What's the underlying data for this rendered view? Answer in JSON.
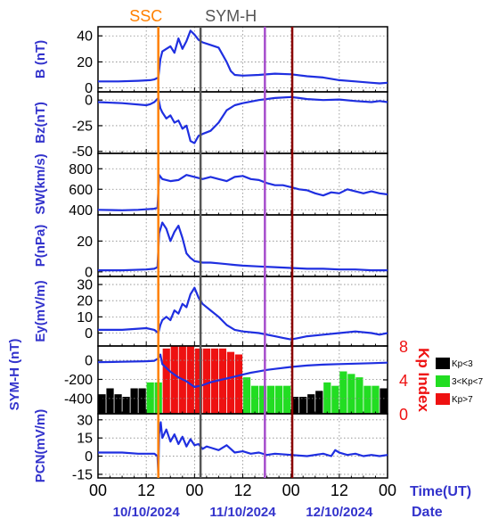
{
  "chart_data": {
    "type": "line",
    "x_axis": {
      "label": "Time(UT)",
      "date_label": "Date",
      "range_hours": [
        0,
        72
      ],
      "tick_hours": [
        0,
        12,
        24,
        36,
        48,
        60,
        72
      ],
      "tick_labels": [
        "00",
        "12",
        "00",
        "12",
        "00",
        "12",
        "00"
      ],
      "dates": [
        {
          "hour": 12,
          "label": "10/10/2024"
        },
        {
          "hour": 36,
          "label": "11/10/2024"
        },
        {
          "hour": 60,
          "label": "12/10/2024"
        }
      ]
    },
    "events": [
      {
        "label": "SSC",
        "hour": 15.0,
        "color": "#ff8000",
        "labeled": true
      },
      {
        "label": "SYM-H",
        "hour": 25.5,
        "color": "#555555",
        "labeled": true
      },
      {
        "label": "",
        "hour": 41.5,
        "color": "#a64dcc",
        "labeled": false
      },
      {
        "label": "",
        "hour": 48.3,
        "color": "#8b0000",
        "labeled": false
      }
    ],
    "panels": [
      {
        "ylabel": "B (nT)",
        "ylim": [
          -3,
          47
        ],
        "yticks": [
          0,
          20,
          40
        ],
        "series": [
          {
            "color": "#1f2fe0",
            "x": [
              0,
              5,
              10,
              13,
              14,
              15,
              15.5,
              16,
              17,
              18,
              19,
              20,
              21,
              22,
              22.5,
              23,
              24,
              25,
              26,
              28,
              30,
              32,
              33,
              34,
              36,
              40,
              44,
              48,
              52,
              56,
              60,
              64,
              68,
              70,
              72
            ],
            "y": [
              5,
              5,
              5.5,
              6,
              6.5,
              8,
              22,
              28,
              30,
              32,
              27,
              38,
              30,
              36,
              40,
              44,
              41,
              37,
              35,
              33,
              31,
              20,
              13,
              10,
              9.5,
              10,
              11,
              10.5,
              9,
              8,
              6,
              5,
              4,
              3.5,
              4
            ]
          }
        ]
      },
      {
        "ylabel": "Bz(nT)",
        "ylim": [
          -52,
          8
        ],
        "yticks": [
          0,
          -25,
          -50
        ],
        "series": [
          {
            "color": "#1f2fe0",
            "x": [
              0,
              6,
              12,
              13,
              14,
              15,
              15.5,
              16,
              17,
              18,
              19,
              20,
              21,
              22,
              23,
              24,
              25,
              26,
              28,
              30,
              32,
              34,
              36,
              40,
              44,
              48,
              50,
              52,
              56,
              60,
              64,
              68,
              70,
              72
            ],
            "y": [
              -2,
              -3,
              -5,
              -4,
              -2,
              2,
              -8,
              -12,
              -18,
              -15,
              -22,
              -20,
              -28,
              -25,
              -40,
              -42,
              -35,
              -33,
              -30,
              -22,
              -10,
              -5,
              -3,
              0,
              2,
              3,
              2,
              1,
              0,
              0.5,
              -1,
              -2,
              -1,
              -2
            ]
          }
        ]
      },
      {
        "ylabel": "SW(km/s)",
        "ylim": [
          350,
          950
        ],
        "yticks": [
          400,
          600,
          800
        ],
        "series": [
          {
            "color": "#1f2fe0",
            "x": [
              0,
              6,
              10,
              12,
              14,
              14.8,
              15.2,
              16,
              18,
              20,
              22,
              24,
              26,
              28,
              30,
              32,
              34,
              36,
              38,
              40,
              42,
              44,
              46,
              48,
              50,
              52,
              54,
              56,
              58,
              60,
              62,
              64,
              66,
              68,
              70,
              72
            ],
            "y": [
              400,
              395,
              400,
              405,
              410,
              420,
              740,
              700,
              680,
              690,
              740,
              720,
              700,
              720,
              700,
              680,
              720,
              730,
              700,
              690,
              660,
              640,
              640,
              620,
              600,
              590,
              560,
              540,
              570,
              560,
              600,
              580,
              560,
              580,
              560,
              550
            ]
          }
        ]
      },
      {
        "ylabel": "P(nPa)",
        "ylim": [
          -3,
          37
        ],
        "yticks": [
          0,
          20
        ],
        "series": [
          {
            "color": "#1f2fe0",
            "x": [
              0,
              6,
              12,
              14,
              14.8,
              15.2,
              16,
              17,
              18,
              19,
              20,
              21,
              22,
              23,
              24,
              26,
              28,
              30,
              32,
              34,
              36,
              40,
              44,
              48,
              52,
              56,
              60,
              64,
              68,
              72
            ],
            "y": [
              1,
              1,
              1.5,
              2,
              3,
              25,
              32,
              28,
              20,
              26,
              30,
              22,
              12,
              9,
              7,
              6,
              6,
              5.5,
              5,
              4.5,
              4,
              3.5,
              3,
              2.5,
              2,
              2,
              1.5,
              1.5,
              1,
              1
            ]
          }
        ]
      },
      {
        "ylabel": "Ey(mV/m)",
        "ylim": [
          -8,
          35
        ],
        "yticks": [
          0,
          10,
          20,
          30
        ],
        "series": [
          {
            "color": "#1f2fe0",
            "x": [
              0,
              6,
              12,
              14,
              15,
              15.5,
              16,
              17,
              18,
              19,
              20,
              21,
              22,
              23,
              24,
              25,
              26,
              28,
              30,
              32,
              34,
              36,
              40,
              44,
              46,
              48,
              50,
              52,
              56,
              60,
              64,
              68,
              70,
              72
            ],
            "y": [
              2,
              2,
              3,
              2,
              0,
              5,
              8,
              10,
              8,
              14,
              12,
              18,
              16,
              24,
              28,
              22,
              18,
              14,
              10,
              5,
              2,
              1,
              0,
              -2,
              -3,
              -4,
              -3,
              -2,
              -1,
              0,
              1,
              0,
              -1,
              0
            ]
          }
        ]
      },
      {
        "ylabel": "SYM-H (nT)",
        "ylim": [
          -560,
          150
        ],
        "yticks": [
          0,
          -200,
          -400
        ],
        "series": [
          {
            "color": "#1f2fe0",
            "x": [
              0,
              6,
              12,
              14,
              15,
              15.5,
              16,
              18,
              20,
              22,
              24,
              26,
              28,
              30,
              32,
              34,
              36,
              38,
              40,
              42,
              44,
              48,
              52,
              56,
              60,
              64,
              68,
              72
            ],
            "y": [
              -20,
              -15,
              -10,
              -5,
              20,
              60,
              -40,
              -120,
              -180,
              -220,
              -280,
              -260,
              -230,
              -210,
              -190,
              -170,
              -150,
              -130,
              -115,
              -100,
              -90,
              -70,
              -55,
              -45,
              -40,
              -35,
              -30,
              -25
            ]
          }
        ],
        "kp": {
          "ylabel": "Kp Index",
          "ylim": [
            0,
            8
          ],
          "yticks": [
            0,
            4,
            8
          ],
          "legend": [
            {
              "label": "Kp<3",
              "color": "#000000"
            },
            {
              "label": "3<Kp<7",
              "color": "#22dd22"
            },
            {
              "label": "Kp>7",
              "color": "#ee1111"
            }
          ],
          "values": [
            2.3,
            3.0,
            2.3,
            2.0,
            3.0,
            3.0,
            3.7,
            3.7,
            7.7,
            8.0,
            8.0,
            8.0,
            7.7,
            7.7,
            7.7,
            7.7,
            7.3,
            7.0,
            4.3,
            3.3,
            3.3,
            3.3,
            3.3,
            3.3,
            2.0,
            2.0,
            2.3,
            2.7,
            3.7,
            3.3,
            5.0,
            4.7,
            4.3,
            3.3,
            3.3,
            3.0
          ]
        }
      },
      {
        "ylabel": "PCN(mV/m)",
        "ylim": [
          -18,
          35
        ],
        "yticks": [
          30,
          15,
          0,
          -15
        ],
        "series": [
          {
            "color": "#1f2fe0",
            "x": [
              0,
              6,
              10,
              12,
              14,
              14.8,
              15.0,
              15.2,
              15.6,
              16,
              17,
              18,
              19,
              20,
              21,
              22,
              23,
              24,
              25,
              26,
              27,
              28,
              30,
              32,
              34,
              36,
              38,
              40,
              42,
              44,
              48,
              52,
              56,
              58,
              59,
              60,
              62,
              64,
              66,
              68,
              70,
              72
            ],
            "y": [
              3,
              3,
              2,
              2,
              2,
              0,
              -15,
              18,
              28,
              15,
              22,
              12,
              18,
              10,
              16,
              8,
              14,
              9,
              10,
              6,
              8,
              7,
              5,
              9,
              3,
              4,
              2,
              3,
              1,
              2,
              1,
              0,
              2,
              0,
              5,
              3,
              1,
              2,
              0,
              1,
              0,
              1
            ]
          }
        ]
      }
    ]
  }
}
